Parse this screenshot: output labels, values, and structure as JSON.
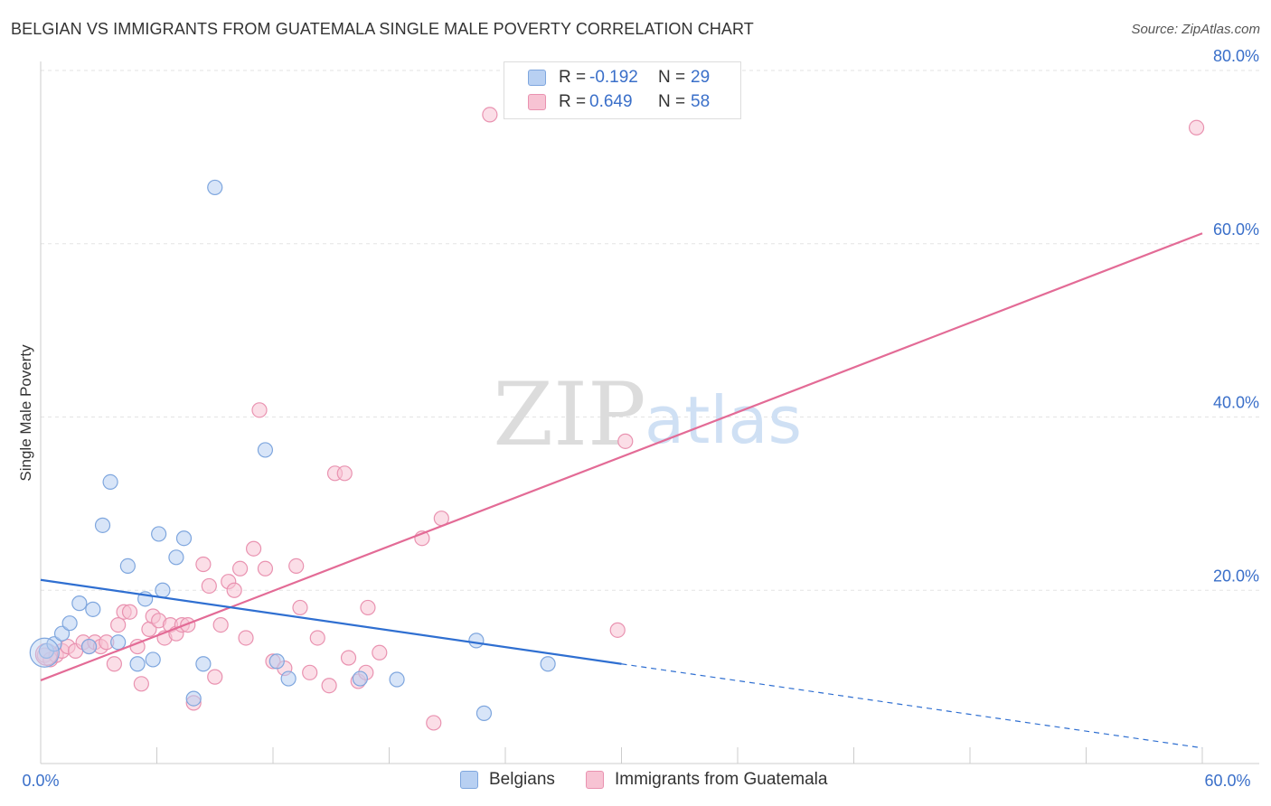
{
  "title": "BELGIAN VS IMMIGRANTS FROM GUATEMALA SINGLE MALE POVERTY CORRELATION CHART",
  "source": "Source: ZipAtlas.com",
  "watermark": {
    "zip": "ZIP",
    "atlas": "atlas"
  },
  "legend": {
    "series1": {
      "r_label": "R =",
      "r_value": "-0.192",
      "n_label": "N =",
      "n_value": "29"
    },
    "series2": {
      "r_label": "R =",
      "r_value": "0.649",
      "n_label": "N =",
      "n_value": "58"
    }
  },
  "bottom_legend": {
    "series1": "Belgians",
    "series2": "Immigrants from Guatemala"
  },
  "colors": {
    "blue_fill": "#b8d0f2",
    "blue_stroke": "#7ea6de",
    "blue_line": "#2f6fd1",
    "pink_fill": "#f7c3d3",
    "pink_stroke": "#e992b0",
    "pink_line": "#e36b96",
    "axis_label": "#3a6fc9",
    "grid": "#e3e3e3"
  },
  "chart_data": {
    "type": "scatter",
    "title": "BELGIAN VS IMMIGRANTS FROM GUATEMALA SINGLE MALE POVERTY CORRELATION CHART",
    "xlabel": "",
    "ylabel": "Single Male Poverty",
    "xlim": [
      0,
      60
    ],
    "ylim": [
      0,
      80
    ],
    "x_tick_labels": [
      "0.0%",
      "60.0%"
    ],
    "y_ticks": [
      20,
      40,
      60,
      80
    ],
    "y_tick_labels": [
      "20.0%",
      "40.0%",
      "60.0%",
      "80.0%"
    ],
    "grid": true,
    "series": [
      {
        "name": "Belgians",
        "r": -0.192,
        "n": 29,
        "points": [
          [
            0.3,
            13.0
          ],
          [
            0.7,
            13.8
          ],
          [
            1.1,
            15.0
          ],
          [
            1.5,
            16.2
          ],
          [
            2.0,
            18.5
          ],
          [
            2.5,
            13.5
          ],
          [
            2.7,
            17.8
          ],
          [
            3.2,
            27.5
          ],
          [
            3.6,
            32.5
          ],
          [
            4.0,
            14.0
          ],
          [
            4.5,
            22.8
          ],
          [
            5.0,
            11.5
          ],
          [
            5.4,
            19.0
          ],
          [
            5.8,
            12.0
          ],
          [
            6.1,
            26.5
          ],
          [
            6.3,
            20.0
          ],
          [
            7.0,
            23.8
          ],
          [
            7.4,
            26.0
          ],
          [
            7.9,
            7.5
          ],
          [
            8.4,
            11.5
          ],
          [
            9.0,
            66.5
          ],
          [
            12.2,
            11.8
          ],
          [
            11.6,
            36.2
          ],
          [
            12.8,
            9.8
          ],
          [
            16.5,
            9.8
          ],
          [
            18.4,
            9.7
          ],
          [
            22.5,
            14.2
          ],
          [
            22.9,
            5.8
          ],
          [
            26.2,
            11.5
          ]
        ],
        "trend": {
          "x0": 0,
          "y0": 21.2,
          "x1": 30,
          "y1": 11.5,
          "dashed_to_x": 60,
          "dashed_to_y": 1.8
        }
      },
      {
        "name": "Immigrants from Guatemala",
        "r": 0.649,
        "n": 58,
        "points": [
          [
            0.2,
            12.5
          ],
          [
            0.5,
            12.0
          ],
          [
            0.8,
            12.5
          ],
          [
            1.1,
            13.0
          ],
          [
            1.4,
            13.5
          ],
          [
            1.8,
            13.0
          ],
          [
            2.2,
            14.0
          ],
          [
            2.5,
            13.5
          ],
          [
            2.8,
            14.0
          ],
          [
            3.1,
            13.5
          ],
          [
            3.4,
            14.0
          ],
          [
            3.8,
            11.5
          ],
          [
            4.0,
            16.0
          ],
          [
            4.3,
            17.5
          ],
          [
            4.6,
            17.5
          ],
          [
            5.0,
            13.5
          ],
          [
            5.2,
            9.2
          ],
          [
            5.6,
            15.5
          ],
          [
            5.8,
            17.0
          ],
          [
            6.1,
            16.5
          ],
          [
            6.4,
            14.5
          ],
          [
            6.7,
            16.0
          ],
          [
            7.0,
            15.0
          ],
          [
            7.3,
            16.0
          ],
          [
            7.6,
            16.0
          ],
          [
            7.9,
            7.0
          ],
          [
            8.4,
            23.0
          ],
          [
            8.7,
            20.5
          ],
          [
            9.0,
            10.0
          ],
          [
            9.3,
            16.0
          ],
          [
            9.7,
            21.0
          ],
          [
            10.0,
            20.0
          ],
          [
            10.3,
            22.5
          ],
          [
            10.6,
            14.5
          ],
          [
            11.0,
            24.8
          ],
          [
            11.3,
            40.8
          ],
          [
            11.6,
            22.5
          ],
          [
            12.0,
            11.8
          ],
          [
            12.6,
            11.0
          ],
          [
            13.2,
            22.8
          ],
          [
            13.4,
            18.0
          ],
          [
            13.9,
            10.5
          ],
          [
            14.3,
            14.5
          ],
          [
            14.9,
            9.0
          ],
          [
            15.2,
            33.5
          ],
          [
            15.7,
            33.5
          ],
          [
            15.9,
            12.2
          ],
          [
            16.4,
            9.5
          ],
          [
            16.8,
            10.5
          ],
          [
            16.9,
            18.0
          ],
          [
            17.5,
            12.8
          ],
          [
            19.7,
            26.0
          ],
          [
            20.3,
            4.7
          ],
          [
            20.7,
            28.3
          ],
          [
            23.2,
            74.9
          ],
          [
            29.8,
            15.4
          ],
          [
            30.2,
            37.2
          ],
          [
            59.7,
            73.4
          ]
        ],
        "trend": {
          "x0": 0,
          "y0": 9.6,
          "x1": 60,
          "y1": 61.2
        }
      }
    ]
  }
}
